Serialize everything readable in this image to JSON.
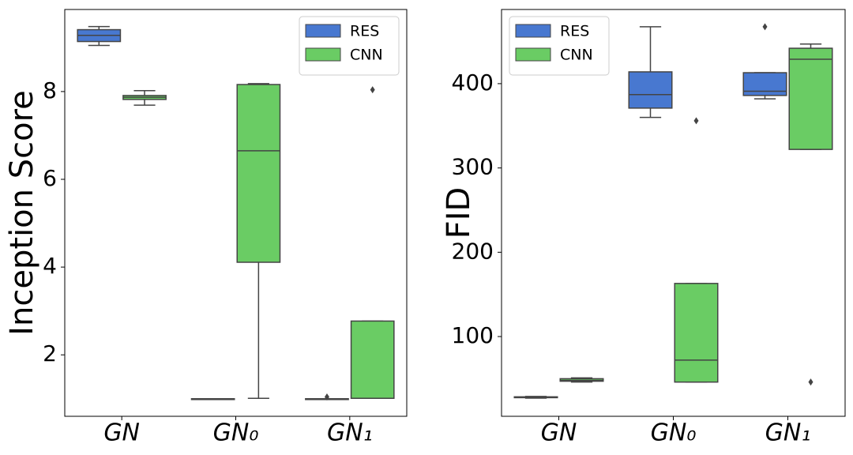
{
  "chart_data": [
    {
      "type": "box",
      "ylabel": "Inception Score",
      "categories": [
        "GN",
        "GN₀",
        "GN₁"
      ],
      "ylim": [
        0.6,
        9.87
      ],
      "yticks": [
        2,
        4,
        6,
        8
      ],
      "legend": "upper right",
      "series": [
        {
          "name": "RES",
          "color": "#4878d0",
          "values": [
            {
              "min": 9.05,
              "q1": 9.14,
              "median": 9.28,
              "q3": 9.41,
              "max": 9.48
            },
            {
              "min": 0.99,
              "q1": 0.99,
              "median": 1.0,
              "q3": 1.0,
              "max": 1.0
            },
            {
              "min": 0.99,
              "q1": 0.99,
              "median": 1.0,
              "q3": 1.0,
              "max": 1.0,
              "outliers": [
                1.04
              ]
            }
          ]
        },
        {
          "name": "CNN",
          "color": "#6acc64",
          "values": [
            {
              "min": 7.69,
              "q1": 7.82,
              "median": 7.87,
              "q3": 7.91,
              "max": 8.02
            },
            {
              "min": 1.01,
              "q1": 4.11,
              "median": 6.65,
              "q3": 8.16,
              "max": 8.18
            },
            {
              "min": 1.01,
              "q1": 1.01,
              "median": 1.01,
              "q3": 2.77,
              "max": 2.77,
              "outliers": [
                8.04
              ]
            }
          ]
        }
      ]
    },
    {
      "type": "box",
      "ylabel": "FID",
      "categories": [
        "GN",
        "GN₀",
        "GN₁"
      ],
      "ylim": [
        5.4,
        488
      ],
      "yticks": [
        100,
        200,
        300,
        400
      ],
      "legend": "upper left",
      "series": [
        {
          "name": "RES",
          "color": "#4878d0",
          "values": [
            {
              "min": 27,
              "q1": 27.5,
              "median": 28,
              "q3": 28.5,
              "max": 29
            },
            {
              "min": 360,
              "q1": 371,
              "median": 387,
              "q3": 414,
              "max": 467.5
            },
            {
              "min": 382,
              "q1": 386,
              "median": 391,
              "q3": 413,
              "max": 413,
              "outliers": [
                467.5
              ]
            }
          ]
        },
        {
          "name": "CNN",
          "color": "#6acc64",
          "values": [
            {
              "min": 46,
              "q1": 47,
              "median": 48,
              "q3": 50,
              "max": 51
            },
            {
              "min": 46,
              "q1": 46,
              "median": 72,
              "q3": 163,
              "max": 163,
              "outliers": [
                356
              ]
            },
            {
              "min": 322,
              "q1": 322,
              "median": 429,
              "q3": 442,
              "max": 447,
              "outliers": [
                46
              ]
            }
          ]
        }
      ]
    }
  ]
}
